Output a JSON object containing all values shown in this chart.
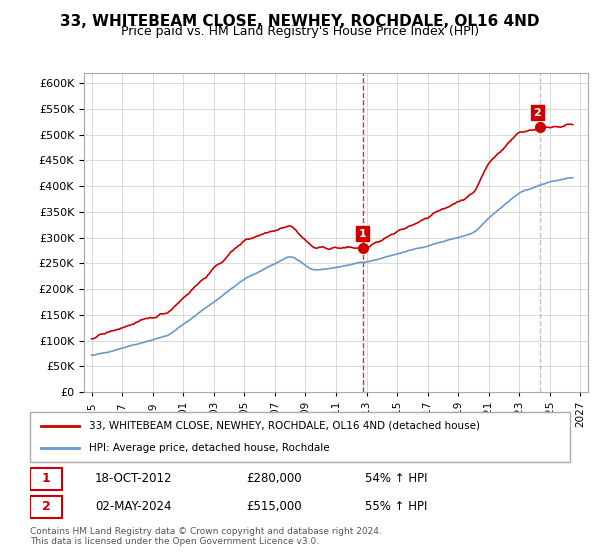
{
  "title": "33, WHITEBEAM CLOSE, NEWHEY, ROCHDALE, OL16 4ND",
  "subtitle": "Price paid vs. HM Land Registry's House Price Index (HPI)",
  "legend_line1": "33, WHITEBEAM CLOSE, NEWHEY, ROCHDALE, OL16 4ND (detached house)",
  "legend_line2": "HPI: Average price, detached house, Rochdale",
  "annotation1_label": "1",
  "annotation1_date": "18-OCT-2012",
  "annotation1_price": "£280,000",
  "annotation1_hpi": "54% ↑ HPI",
  "annotation2_label": "2",
  "annotation2_date": "02-MAY-2024",
  "annotation2_price": "£515,000",
  "annotation2_hpi": "55% ↑ HPI",
  "footer": "Contains HM Land Registry data © Crown copyright and database right 2024.\nThis data is licensed under the Open Government Licence v3.0.",
  "hpi_color": "#6699cc",
  "price_color": "#cc0000",
  "marker1_x": 2012.8,
  "marker2_x": 2024.33,
  "marker1_y": 280000,
  "marker2_y": 515000,
  "vline1_x": 2012.8,
  "vline2_x": 2024.33,
  "ylim_min": 0,
  "ylim_max": 620000,
  "xlim_min": 1994.5,
  "xlim_max": 2027.5,
  "xticks": [
    1995,
    1997,
    1999,
    2001,
    2003,
    2005,
    2007,
    2009,
    2011,
    2013,
    2015,
    2017,
    2019,
    2021,
    2023,
    2025,
    2027
  ],
  "yticks": [
    0,
    50000,
    100000,
    150000,
    200000,
    250000,
    300000,
    350000,
    400000,
    450000,
    500000,
    550000,
    600000
  ],
  "background_color": "#ffffff",
  "grid_color": "#cccccc"
}
